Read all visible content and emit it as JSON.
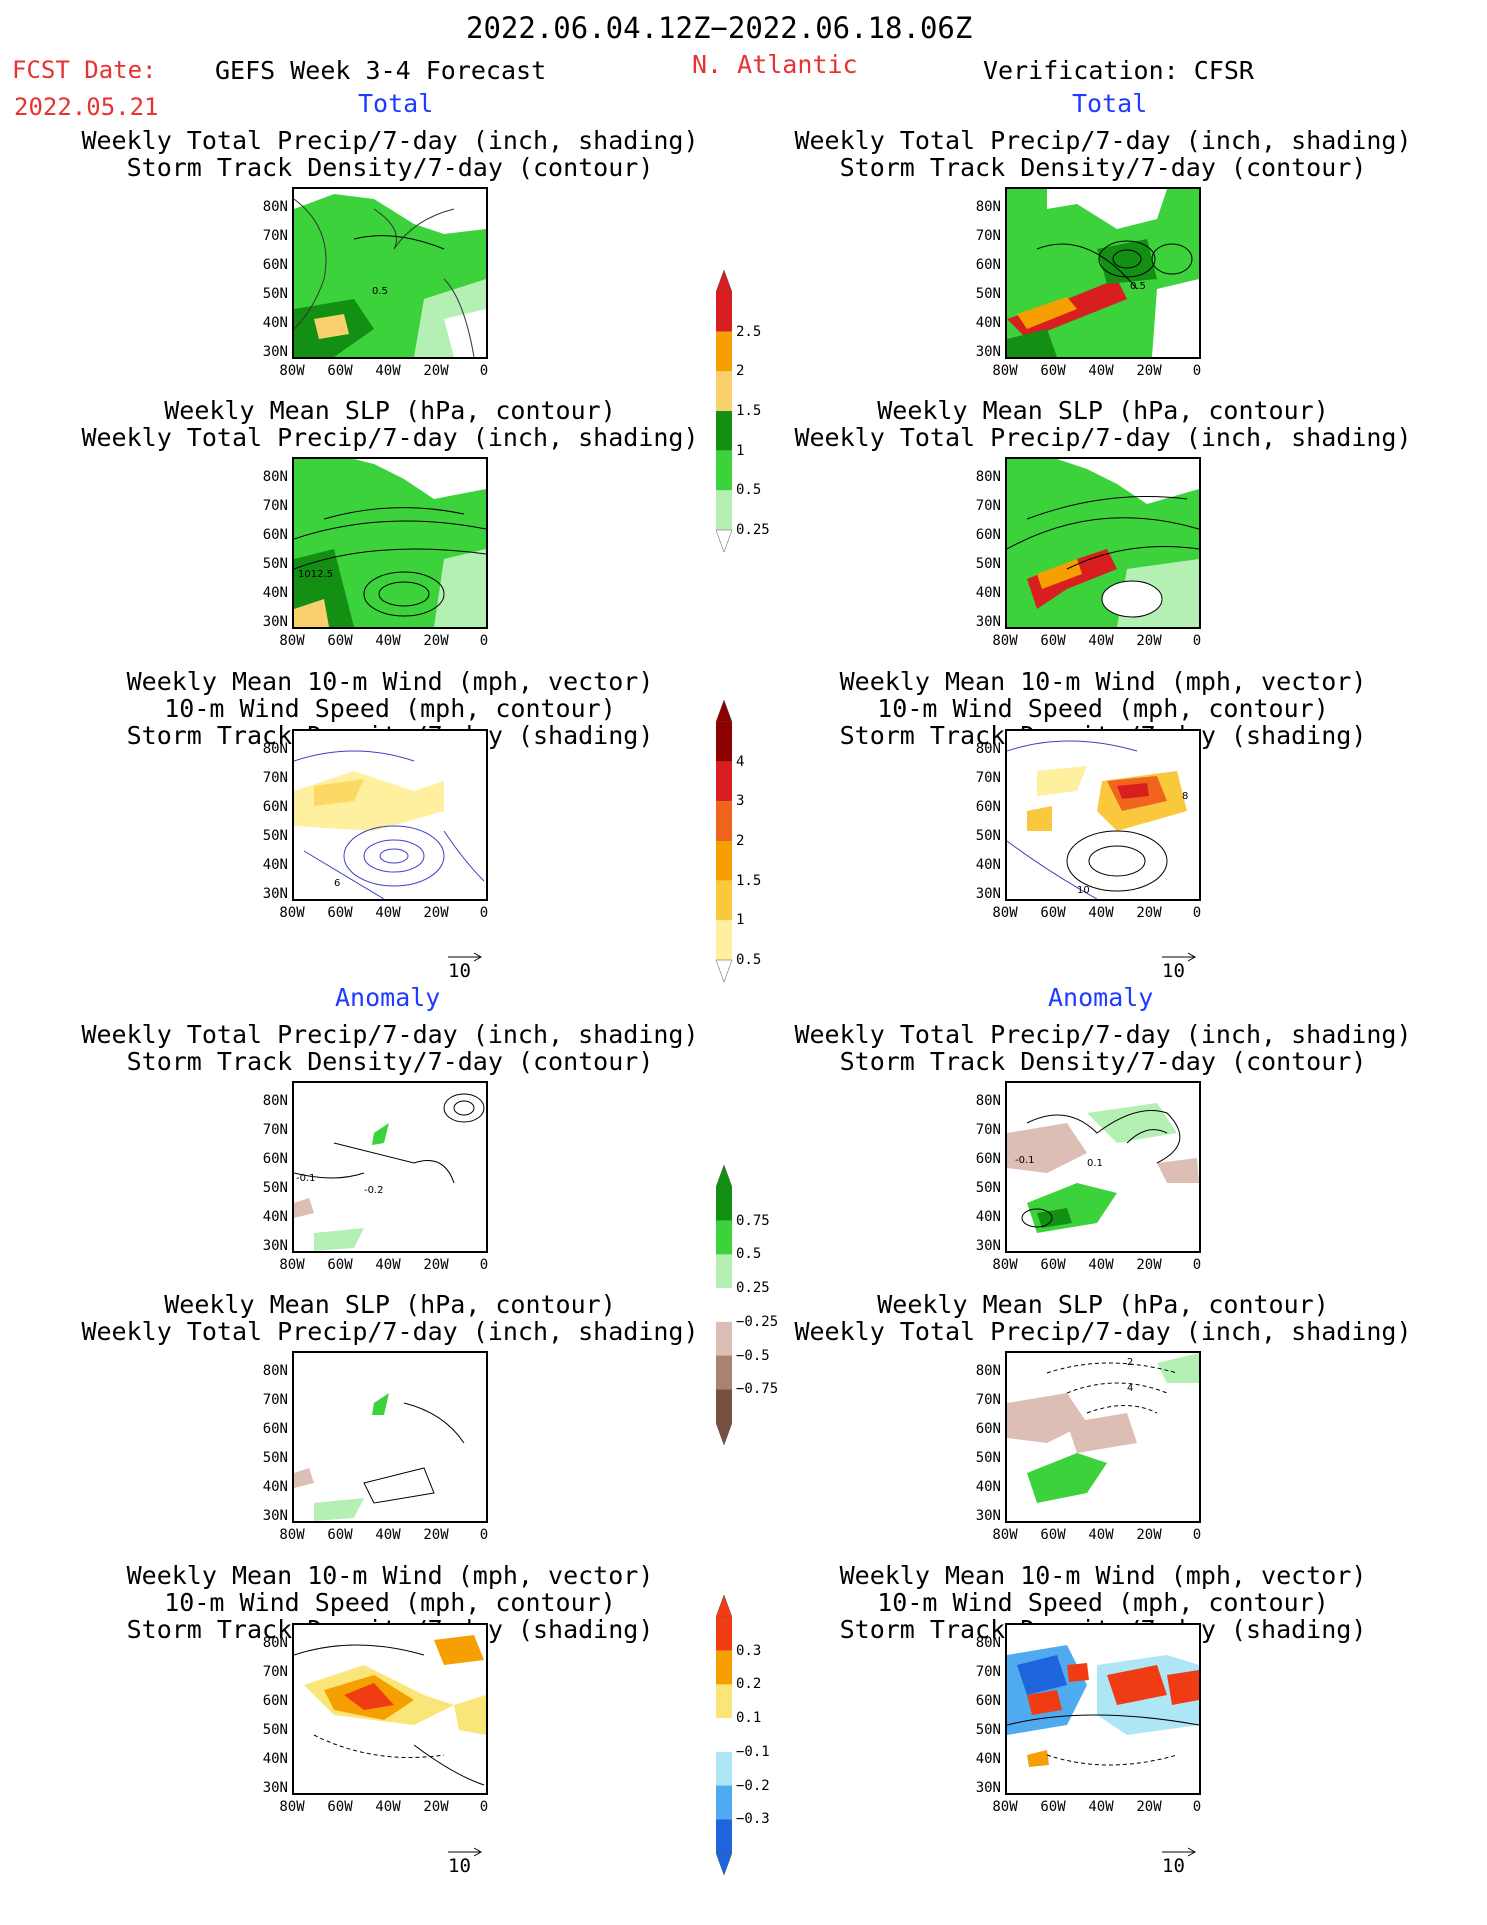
{
  "header": {
    "date_range": "2022.06.04.12Z−2022.06.18.06Z",
    "fcst_label": "FCST Date:",
    "fcst_date": "2022.05.21",
    "forecast_title": "GEFS Week 3-4 Forecast",
    "region": "N. Atlantic",
    "verification": "Verification: CFSR"
  },
  "sections": {
    "total": "Total",
    "anomaly": "Anomaly"
  },
  "panel_titles": {
    "precip_track": [
      "Weekly Total Precip/7-day (inch, shading)",
      "Storm Track Density/7-day (contour)"
    ],
    "slp_precip": [
      "Weekly Mean SLP (hPa, contour)",
      "Weekly Total Precip/7-day (inch, shading)"
    ],
    "wind_track": [
      "Weekly Mean 10-m Wind (mph, vector)",
      "10-m Wind Speed (mph, contour)",
      "Storm Track Density/7-day (shading)"
    ]
  },
  "axes": {
    "lat_ticks": [
      "80N",
      "70N",
      "60N",
      "50N",
      "40N",
      "30N"
    ],
    "lon_ticks": [
      "80W",
      "60W",
      "40W",
      "20W",
      "0"
    ]
  },
  "map_labels": {
    "fcst_total_track": "0.5",
    "cfsr_total_track": "0.5",
    "fcst_total_slp": "1012.5",
    "fcst_total_wind": "6",
    "cfsr_total_wind_a": "10",
    "cfsr_total_wind_b": "8",
    "fcst_anom_track_a": "-0.1",
    "fcst_anom_track_b": "-0.2",
    "cfsr_anom_track_a": "-0.1",
    "cfsr_anom_track_b": "0.1",
    "cfsr_anom_slp_a": "2",
    "cfsr_anom_slp_b": "4"
  },
  "vector_ref": "10",
  "colorbars": {
    "precip_total": {
      "labels": [
        "2.5",
        "2",
        "1.5",
        "1",
        "0.5",
        "0.25"
      ],
      "colors": [
        "#d81e1e",
        "#f5a000",
        "#fad06e",
        "#138f13",
        "#3cd23c",
        "#b4f0b4"
      ]
    },
    "track_total": {
      "labels": [
        "4",
        "3",
        "2",
        "1.5",
        "1",
        "0.5"
      ],
      "colors": [
        "#8c0000",
        "#d81e1e",
        "#f0641e",
        "#f5a000",
        "#fac83c",
        "#fff0a0"
      ]
    },
    "precip_anom": {
      "labels": [
        "0.75",
        "0.5",
        "0.25",
        "−0.25",
        "−0.5",
        "−0.75"
      ],
      "colors": [
        "#138f13",
        "#3cd23c",
        "#b4f0b4",
        "#ffffff",
        "#dcbeb4",
        "#aa8270",
        "#785040"
      ]
    },
    "track_anom": {
      "labels": [
        "0.3",
        "0.2",
        "0.1",
        "−0.1",
        "−0.2",
        "−0.3"
      ],
      "colors": [
        "#f03c14",
        "#f5a000",
        "#fae678",
        "#ffffff",
        "#aee6f5",
        "#50aaf0",
        "#1e64dc"
      ]
    }
  }
}
